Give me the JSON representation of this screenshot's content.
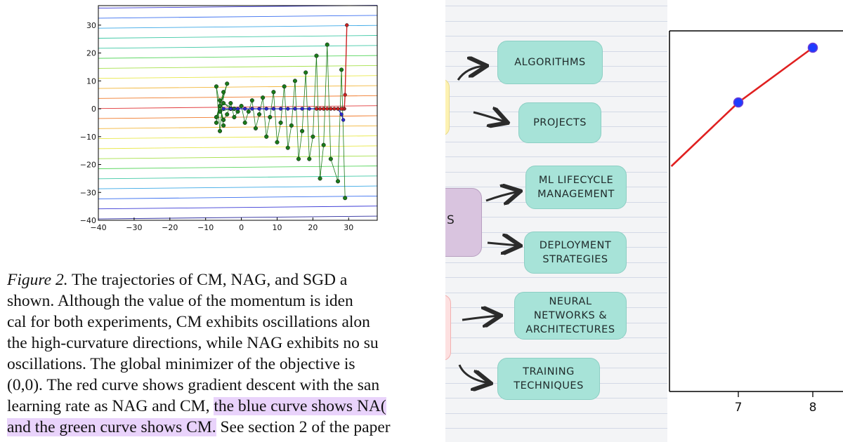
{
  "figure": {
    "title": "Figure 2.",
    "caption_lines": [
      [
        {
          "t": "Figure 2.",
          "style": "italic"
        },
        {
          "t": "  The trajectories of CM, NAG, and SGD a"
        }
      ],
      [
        {
          "t": "shown.  Although the value of the momentum is iden"
        }
      ],
      [
        {
          "t": "cal for both experiments, CM exhibits oscillations alon"
        }
      ],
      [
        {
          "t": "the high-curvature directions, while NAG exhibits no su"
        }
      ],
      [
        {
          "t": "oscillations.  The global minimizer of the objective is"
        }
      ],
      [
        {
          "t": "(0,0). The red curve shows gradient descent with the san"
        }
      ],
      [
        {
          "t": "learning rate as NAG and CM, "
        },
        {
          "t": "the blue curve shows NA(",
          "style": "highlight"
        }
      ],
      [
        {
          "t": "and the green curve shows CM.",
          "style": "highlight"
        },
        {
          "t": " See section 2 of the paper"
        }
      ]
    ]
  },
  "chart_data": [
    {
      "type": "line",
      "title": "",
      "xlabel": "",
      "ylabel": "",
      "xlim": [
        -40,
        38
      ],
      "ylim": [
        -40,
        37
      ],
      "xticks": [
        -40,
        -30,
        -20,
        -10,
        0,
        10,
        20,
        30
      ],
      "yticks": [
        30,
        20,
        10,
        0,
        -10,
        -20,
        -30,
        -40
      ],
      "xtick_labels": [
        "−40",
        "−30",
        "−20",
        "−10",
        "0",
        "10",
        "20",
        "30"
      ],
      "ytick_labels": [
        "30",
        "20",
        "10",
        "0",
        "−10",
        "−20",
        "−30",
        "−40"
      ],
      "background": "contour lines (rainbow)",
      "series": [
        {
          "color": "#1a7a1a",
          "points": [
            [
              29,
              -32
            ],
            [
              28,
              14
            ],
            [
              27,
              -26
            ],
            [
              25,
              -18
            ],
            [
              24,
              23
            ],
            [
              23,
              -13
            ],
            [
              22,
              -25
            ],
            [
              21,
              19
            ],
            [
              20,
              -10
            ],
            [
              19,
              -18
            ],
            [
              18,
              13
            ],
            [
              17,
              -8
            ],
            [
              16,
              -18
            ],
            [
              15,
              10
            ],
            [
              14,
              -6
            ],
            [
              13,
              -14
            ],
            [
              12,
              8
            ],
            [
              11,
              -5
            ],
            [
              10,
              -12
            ],
            [
              9,
              6
            ],
            [
              8,
              -3
            ],
            [
              7,
              -10
            ],
            [
              6,
              4
            ],
            [
              5,
              -2
            ],
            [
              4,
              -7
            ],
            [
              3,
              3
            ],
            [
              2,
              -1
            ],
            [
              1,
              -5
            ],
            [
              0,
              1
            ],
            [
              -1,
              -1
            ],
            [
              -2,
              -3
            ],
            [
              -3,
              2
            ],
            [
              -4,
              -2
            ],
            [
              -5,
              -4
            ],
            [
              -6,
              1
            ],
            [
              -7,
              -5
            ],
            [
              -6,
              3
            ],
            [
              -5,
              -6
            ],
            [
              -7,
              8
            ],
            [
              -6,
              -8
            ],
            [
              -5,
              6
            ],
            [
              -7,
              -3
            ],
            [
              -4,
              9
            ],
            [
              -6,
              -1
            ],
            [
              -3,
              0
            ],
            [
              -5,
              2
            ],
            [
              -2,
              0
            ]
          ]
        },
        {
          "color": "#2a2acc",
          "points": [
            [
              -5,
              0
            ],
            [
              -3,
              0
            ],
            [
              -1,
              0
            ],
            [
              1,
              0
            ],
            [
              3,
              0
            ],
            [
              5,
              0
            ],
            [
              7,
              0
            ],
            [
              9,
              0
            ],
            [
              11,
              0
            ],
            [
              13,
              0
            ],
            [
              15,
              0
            ],
            [
              17,
              0
            ],
            [
              19,
              0
            ],
            [
              21,
              0
            ],
            [
              23,
              0
            ],
            [
              25,
              0
            ],
            [
              27,
              0
            ],
            [
              28,
              -2
            ],
            [
              28.5,
              -4
            ]
          ]
        },
        {
          "color": "#cc2222",
          "points": [
            [
              29.5,
              30
            ],
            [
              29,
              5
            ],
            [
              28.8,
              0
            ],
            [
              28.5,
              0
            ],
            [
              28,
              0
            ],
            [
              27,
              0
            ],
            [
              26,
              0
            ],
            [
              25,
              0
            ],
            [
              24,
              0
            ],
            [
              23,
              0
            ],
            [
              22,
              0
            ],
            [
              21,
              0
            ]
          ]
        }
      ]
    },
    {
      "type": "line",
      "title": "",
      "xlabel": "",
      "ylabel": "",
      "xticks": [
        7,
        8
      ],
      "xtick_labels": [
        "7",
        "8"
      ],
      "series": [
        {
          "color": "#e02020",
          "points": [
            [
              6.1,
              -0.7
            ],
            [
              7,
              0.0
            ],
            [
              8,
              0.6
            ]
          ]
        }
      ],
      "markers": {
        "color": "#1e3cff",
        "points": [
          [
            7,
            0.0
          ],
          [
            8,
            0.6
          ]
        ]
      }
    }
  ],
  "mindmap": {
    "partial_label": "S",
    "nodes": [
      {
        "id": "algorithms",
        "label_lines": [
          "ALGORITHMS"
        ]
      },
      {
        "id": "projects",
        "label_lines": [
          "PROJECTS"
        ]
      },
      {
        "id": "ml-lifecycle",
        "label_lines": [
          "ML LIFECYCLE",
          "MANAGEMENT"
        ]
      },
      {
        "id": "deployment",
        "label_lines": [
          "DEPLOYMENT",
          "STRATEGIES"
        ]
      },
      {
        "id": "neural-networks",
        "label_lines": [
          "NEURAL",
          "NETWORKS &",
          "ARCHITECTURES"
        ]
      },
      {
        "id": "training",
        "label_lines": [
          "TRAINING",
          "TECHNIQUES"
        ]
      }
    ],
    "colors": {
      "node_fill": "#a7e3d8",
      "node_border": "#8ccfc4",
      "yellow": "#fdf2b3",
      "purple": "#d9c4df",
      "pink": "#fde0e0"
    }
  }
}
